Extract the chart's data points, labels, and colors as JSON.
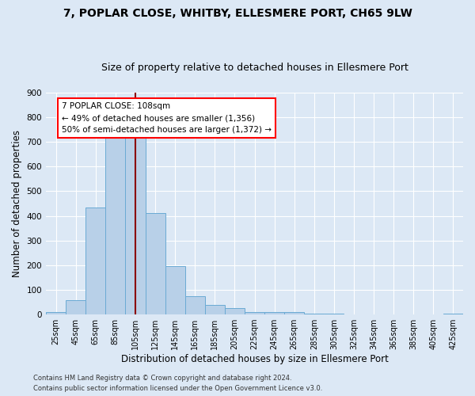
{
  "title": "7, POPLAR CLOSE, WHITBY, ELLESMERE PORT, CH65 9LW",
  "subtitle": "Size of property relative to detached houses in Ellesmere Port",
  "xlabel": "Distribution of detached houses by size in Ellesmere Port",
  "ylabel": "Number of detached properties",
  "footnote1": "Contains HM Land Registry data © Crown copyright and database right 2024.",
  "footnote2": "Contains public sector information licensed under the Open Government Licence v3.0.",
  "bar_labels": [
    "25sqm",
    "45sqm",
    "65sqm",
    "85sqm",
    "105sqm",
    "125sqm",
    "145sqm",
    "165sqm",
    "185sqm",
    "205sqm",
    "225sqm",
    "245sqm",
    "265sqm",
    "285sqm",
    "305sqm",
    "325sqm",
    "345sqm",
    "365sqm",
    "385sqm",
    "405sqm",
    "425sqm"
  ],
  "bar_values": [
    10,
    58,
    435,
    750,
    750,
    410,
    195,
    75,
    38,
    25,
    10,
    10,
    10,
    3,
    2,
    0,
    0,
    0,
    0,
    0,
    5
  ],
  "bar_color": "#b8d0e8",
  "bar_edge_color": "#6aaad4",
  "reference_line_x": 4,
  "reference_line_label": "7 POPLAR CLOSE: 108sqm",
  "annotation_line1": "← 49% of detached houses are smaller (1,356)",
  "annotation_line2": "50% of semi-detached houses are larger (1,372) →",
  "ylim": [
    0,
    900
  ],
  "yticks": [
    0,
    100,
    200,
    300,
    400,
    500,
    600,
    700,
    800,
    900
  ],
  "bg_color": "#dce8f5",
  "plot_bg_color": "#dce8f5",
  "grid_color": "#ffffff",
  "title_fontsize": 10,
  "subtitle_fontsize": 9,
  "axis_label_fontsize": 8.5
}
